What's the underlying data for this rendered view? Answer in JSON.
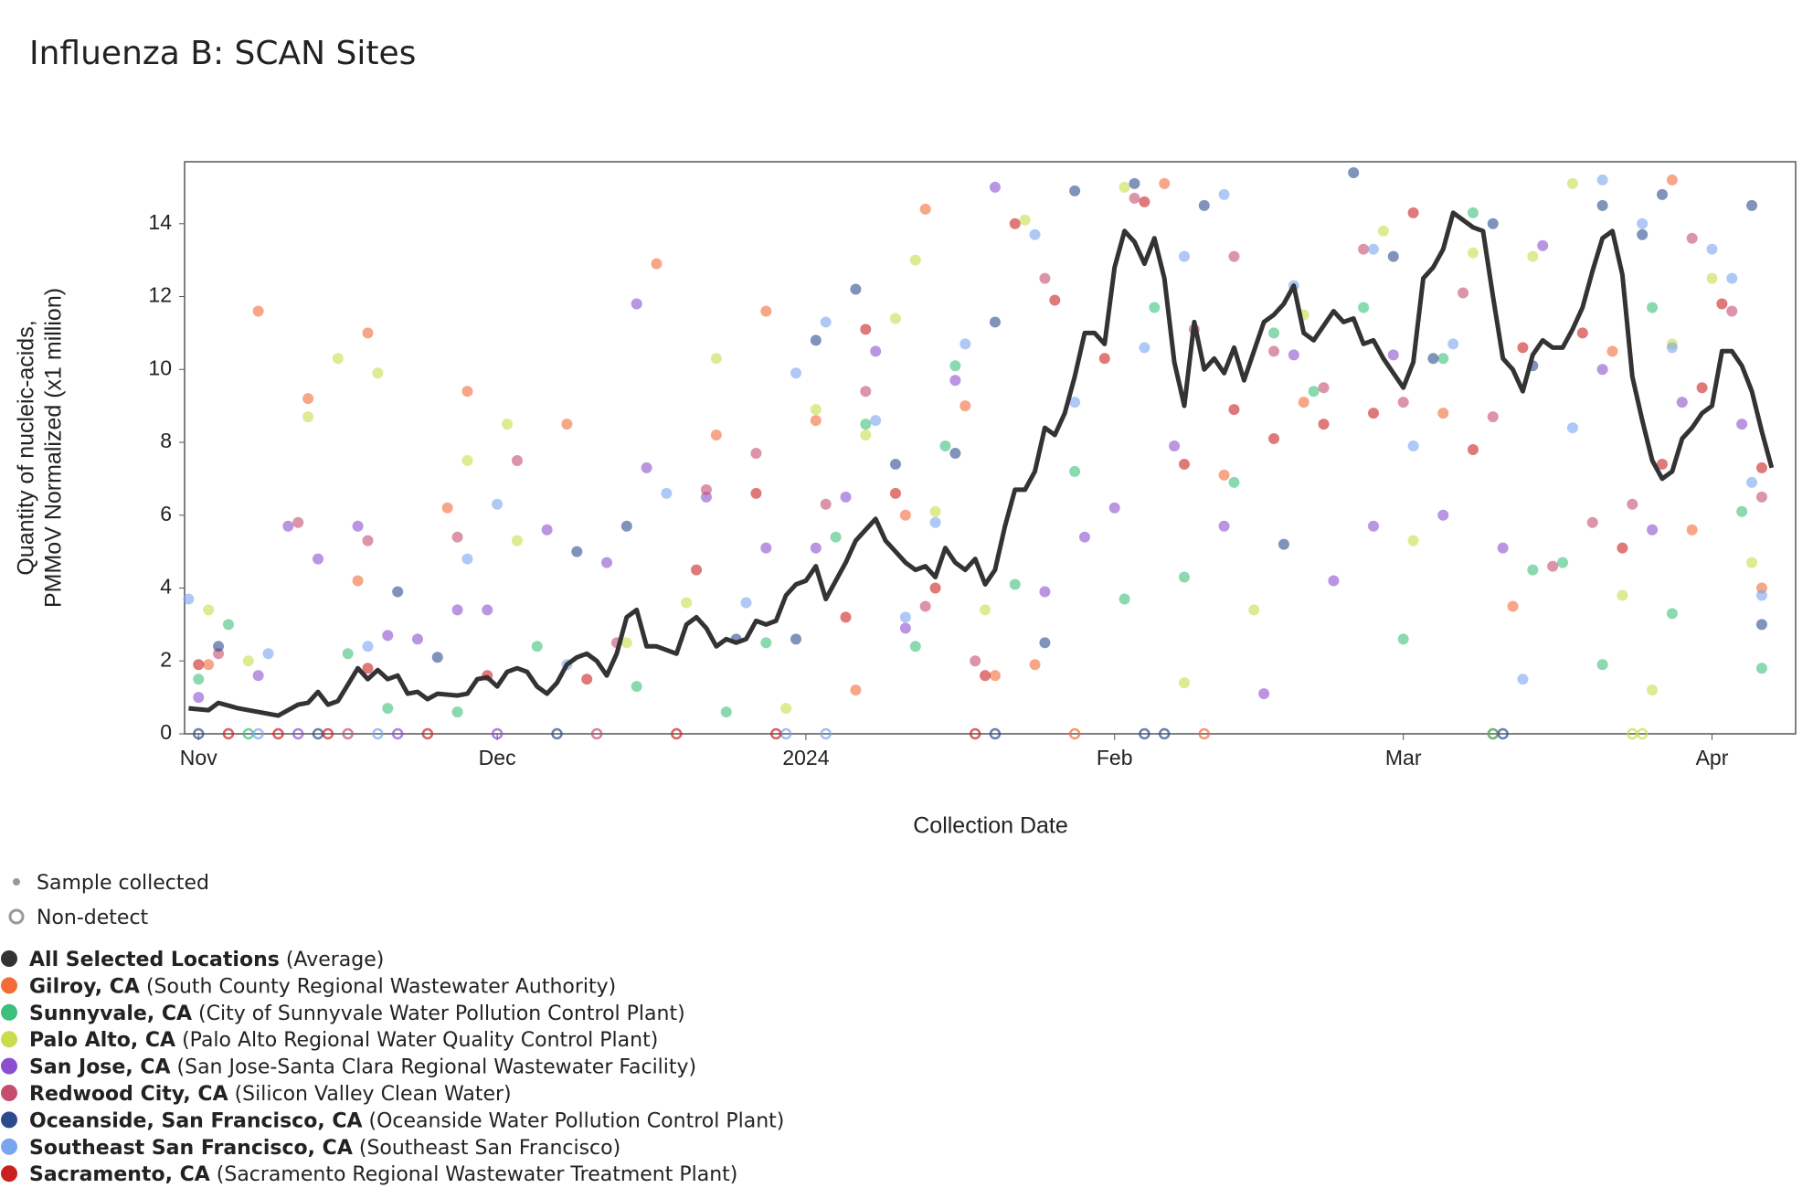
{
  "chart_data": {
    "type": "scatter",
    "title": "Influenza B: SCAN Sites",
    "xlabel": "Collection Date",
    "ylabel": [
      "Quantity of nucleic-acids,",
      "PMMoV Normalized (x1 million)"
    ],
    "xlim": [
      -1.4,
      160.4
    ],
    "xticks": [
      {
        "value": 0,
        "label": "Nov"
      },
      {
        "value": 30,
        "label": "Dec"
      },
      {
        "value": 61,
        "label": "2024"
      },
      {
        "value": 92,
        "label": "Feb"
      },
      {
        "value": 121,
        "label": "Mar"
      },
      {
        "value": 152,
        "label": "Apr"
      }
    ],
    "ylim": [
      0,
      15.7
    ],
    "yticks": [
      0,
      2,
      4,
      6,
      8,
      10,
      12,
      14
    ],
    "grid": false,
    "legend_notes": [
      "Sample collected",
      "Non-detect"
    ],
    "series": [
      {
        "name": "All Selected Locations",
        "detail": "(Average)",
        "color": "#333333",
        "mode": "line",
        "x": [
          -1,
          1,
          2,
          4,
          6,
          8,
          10,
          11,
          12,
          13,
          14,
          16,
          17,
          18,
          19,
          20,
          21,
          22,
          23,
          24,
          26,
          27,
          28,
          29,
          30,
          31,
          32,
          33,
          34,
          35,
          36,
          37,
          38,
          39,
          40,
          41,
          42,
          43,
          44,
          45,
          46,
          47,
          48,
          49,
          50,
          51,
          52,
          53,
          54,
          55,
          56,
          57,
          58,
          59,
          60,
          61,
          62,
          63,
          64,
          65,
          66,
          67,
          68,
          69,
          70,
          71,
          72,
          73,
          74,
          75,
          76,
          77,
          78,
          79,
          80,
          81,
          82,
          83,
          84,
          85,
          86,
          87,
          88,
          89,
          90,
          91,
          92,
          93,
          94,
          95,
          96,
          97,
          98,
          99,
          100,
          101,
          102,
          103,
          104,
          105,
          106,
          107,
          108,
          109,
          110,
          111,
          112,
          113,
          114,
          115,
          116,
          117,
          118,
          119,
          120,
          121,
          122,
          123,
          124,
          125,
          126,
          127,
          128,
          129,
          130,
          131,
          132,
          133,
          134,
          135,
          136,
          137,
          138,
          139,
          140,
          141,
          142,
          143,
          144,
          145,
          146,
          147,
          148,
          149,
          150,
          151,
          152,
          153,
          154,
          155,
          156,
          157,
          158
        ],
        "values": [
          0.7,
          0.65,
          0.85,
          0.7,
          0.6,
          0.5,
          0.8,
          0.85,
          1.15,
          0.8,
          0.9,
          1.8,
          1.5,
          1.75,
          1.5,
          1.6,
          1.1,
          1.15,
          0.95,
          1.1,
          1.05,
          1.1,
          1.5,
          1.55,
          1.3,
          1.7,
          1.8,
          1.7,
          1.3,
          1.1,
          1.4,
          1.9,
          2.1,
          2.2,
          2.0,
          1.6,
          2.2,
          3.2,
          3.4,
          2.4,
          2.4,
          2.3,
          2.2,
          3.0,
          3.2,
          2.9,
          2.4,
          2.6,
          2.5,
          2.6,
          3.1,
          3.0,
          3.1,
          3.8,
          4.1,
          4.2,
          4.6,
          3.7,
          4.2,
          4.7,
          5.3,
          5.6,
          5.9,
          5.3,
          5.0,
          4.7,
          4.5,
          4.6,
          4.3,
          5.1,
          4.7,
          4.5,
          4.8,
          4.1,
          4.5,
          5.7,
          6.7,
          6.7,
          7.2,
          8.4,
          8.2,
          8.8,
          9.8,
          11.0,
          11.0,
          10.7,
          12.8,
          13.8,
          13.5,
          12.9,
          13.6,
          12.5,
          10.2,
          9.0,
          11.3,
          10.0,
          10.3,
          9.9,
          10.6,
          9.7,
          10.5,
          11.3,
          11.5,
          11.8,
          12.3,
          11.0,
          10.8,
          11.2,
          11.6,
          11.3,
          11.4,
          10.7,
          10.8,
          10.3,
          9.9,
          9.5,
          10.2,
          12.5,
          12.8,
          13.3,
          14.3,
          14.1,
          13.9,
          13.8,
          12.0,
          10.3,
          10.0,
          9.4,
          10.4,
          10.8,
          10.6,
          10.6,
          11.1,
          11.7,
          12.7,
          13.6,
          13.8,
          12.6,
          9.8,
          8.6,
          7.5,
          7.0,
          7.2,
          8.1,
          8.4,
          8.8,
          9.0,
          10.5,
          10.5,
          10.1,
          9.4,
          8.3,
          7.3
        ]
      },
      {
        "name": "Gilroy, CA",
        "detail": "(South County Regional Wastewater Authority)",
        "color": "#f26b38",
        "x": [
          1,
          6,
          11,
          16,
          17,
          25,
          27,
          37,
          46,
          52,
          57,
          62,
          66,
          71,
          73,
          77,
          80,
          84,
          97,
          103,
          111,
          125,
          132,
          142,
          148,
          150,
          157,
          88,
          101,
          130
        ],
        "values": [
          1.9,
          11.6,
          9.2,
          4.2,
          11.0,
          6.2,
          9.4,
          8.5,
          12.9,
          8.2,
          11.6,
          8.6,
          1.2,
          6.0,
          14.4,
          9.0,
          1.6,
          1.9,
          15.1,
          7.1,
          9.1,
          8.8,
          3.5,
          10.5,
          15.2,
          5.6,
          4.0,
          0,
          0,
          0
        ]
      },
      {
        "name": "Sunnyvale, CA",
        "detail": "(City of Sunnyvale Water Pollution Control Plant)",
        "color": "#3cbf7a",
        "x": [
          0,
          3,
          15,
          19,
          26,
          34,
          44,
          53,
          57,
          64,
          67,
          72,
          75,
          76,
          82,
          88,
          93,
          96,
          99,
          104,
          108,
          112,
          117,
          121,
          125,
          128,
          134,
          137,
          141,
          146,
          148,
          155,
          157,
          130,
          5
        ],
        "values": [
          1.5,
          3.0,
          2.2,
          0.7,
          0.6,
          2.4,
          1.3,
          0.6,
          2.5,
          5.4,
          8.5,
          2.4,
          7.9,
          10.1,
          4.1,
          7.2,
          3.7,
          11.7,
          4.3,
          6.9,
          11.0,
          9.4,
          11.7,
          2.6,
          10.3,
          14.3,
          4.5,
          4.7,
          1.9,
          11.7,
          3.3,
          6.1,
          1.8,
          0,
          0
        ]
      },
      {
        "name": "Palo Alto, CA",
        "detail": "(Palo Alto Regional Water Quality Control Plant)",
        "color": "#c9dc4a",
        "x": [
          1,
          5,
          11,
          14,
          18,
          27,
          31,
          32,
          43,
          49,
          52,
          59,
          62,
          67,
          70,
          72,
          74,
          79,
          83,
          93,
          99,
          106,
          111,
          119,
          122,
          128,
          134,
          138,
          143,
          146,
          148,
          152,
          156,
          144,
          145
        ],
        "values": [
          3.4,
          2.0,
          8.7,
          10.3,
          9.9,
          7.5,
          8.5,
          5.3,
          2.5,
          3.6,
          10.3,
          0.7,
          8.9,
          8.2,
          11.4,
          13.0,
          6.1,
          3.4,
          14.1,
          15.0,
          1.4,
          3.4,
          11.5,
          13.8,
          5.3,
          13.2,
          13.1,
          15.1,
          3.8,
          1.2,
          10.7,
          12.5,
          4.7,
          0,
          0
        ]
      },
      {
        "name": "San Jose, CA",
        "detail": "(San Jose-Santa Clara Regional Wastewater Facility)",
        "color": "#8a4fcf",
        "x": [
          0,
          6,
          9,
          12,
          16,
          19,
          22,
          26,
          29,
          35,
          41,
          44,
          45,
          51,
          57,
          62,
          65,
          68,
          71,
          76,
          80,
          85,
          89,
          92,
          98,
          103,
          107,
          110,
          114,
          118,
          120,
          125,
          131,
          135,
          141,
          146,
          149,
          155,
          10,
          20,
          30
        ],
        "values": [
          1.0,
          1.6,
          5.7,
          4.8,
          5.7,
          2.7,
          2.6,
          3.4,
          3.4,
          5.6,
          4.7,
          11.8,
          7.3,
          6.5,
          5.1,
          5.1,
          6.5,
          10.5,
          2.9,
          9.7,
          15.0,
          3.9,
          5.4,
          6.2,
          7.9,
          5.7,
          1.1,
          10.4,
          4.2,
          5.7,
          10.4,
          6.0,
          5.1,
          13.4,
          10.0,
          5.6,
          9.1,
          8.5,
          0,
          0,
          0
        ]
      },
      {
        "name": "Redwood City, CA",
        "detail": "(Silicon Valley Clean Water)",
        "color": "#c44e6e",
        "x": [
          2,
          10,
          17,
          26,
          32,
          42,
          51,
          56,
          63,
          67,
          73,
          78,
          85,
          94,
          100,
          104,
          108,
          113,
          117,
          121,
          127,
          130,
          136,
          140,
          144,
          150,
          154,
          157,
          15,
          40
        ],
        "values": [
          2.2,
          5.8,
          5.3,
          5.4,
          7.5,
          2.5,
          6.7,
          7.7,
          6.3,
          9.4,
          3.5,
          2.0,
          12.5,
          14.7,
          11.1,
          13.1,
          10.5,
          9.5,
          13.3,
          9.1,
          12.1,
          8.7,
          4.6,
          5.8,
          6.3,
          13.6,
          11.6,
          6.5,
          0,
          0
        ]
      },
      {
        "name": "Oceanside, San Francisco, CA",
        "detail": "(Oceanside Water Pollution Control Plant)",
        "color": "#2a4b8d",
        "x": [
          2,
          20,
          24,
          38,
          43,
          54,
          60,
          62,
          66,
          70,
          76,
          80,
          85,
          88,
          94,
          101,
          109,
          116,
          120,
          124,
          130,
          134,
          141,
          145,
          147,
          156,
          157,
          0,
          12,
          36,
          80,
          95,
          97,
          131
        ],
        "values": [
          2.4,
          3.9,
          2.1,
          5.0,
          5.7,
          2.6,
          2.6,
          10.8,
          12.2,
          7.4,
          7.7,
          11.3,
          2.5,
          14.9,
          15.1,
          14.5,
          5.2,
          15.4,
          13.1,
          10.3,
          14.0,
          10.1,
          14.5,
          13.7,
          14.8,
          14.5,
          3.0,
          0,
          0,
          0,
          0,
          0,
          0,
          0
        ]
      },
      {
        "name": "Southeast San Francisco, CA",
        "detail": "(Southeast San Francisco)",
        "color": "#7ba4f0",
        "x": [
          -1,
          7,
          17,
          27,
          30,
          37,
          47,
          55,
          60,
          63,
          68,
          71,
          74,
          77,
          84,
          88,
          95,
          99,
          103,
          110,
          118,
          122,
          126,
          133,
          138,
          141,
          145,
          148,
          152,
          154,
          156,
          157,
          6,
          18,
          59,
          63
        ],
        "values": [
          3.7,
          2.2,
          2.4,
          4.8,
          6.3,
          1.9,
          6.6,
          3.6,
          9.9,
          11.3,
          8.6,
          3.2,
          5.8,
          10.7,
          13.7,
          9.1,
          10.6,
          13.1,
          14.8,
          12.3,
          13.3,
          7.9,
          10.7,
          1.5,
          8.4,
          15.2,
          14.0,
          10.6,
          13.3,
          12.5,
          6.9,
          3.8,
          0,
          0,
          0,
          0
        ]
      },
      {
        "name": "Sacramento, CA",
        "detail": "(Sacramento Regional Wastewater Treatment Plant)",
        "color": "#cc1f1f",
        "x": [
          0,
          8,
          17,
          29,
          39,
          50,
          56,
          65,
          67,
          70,
          74,
          79,
          82,
          86,
          91,
          95,
          99,
          104,
          108,
          113,
          118,
          122,
          128,
          133,
          139,
          143,
          147,
          151,
          153,
          157,
          3,
          13,
          23,
          48,
          58,
          78
        ],
        "values": [
          1.9,
          0,
          1.8,
          1.6,
          1.5,
          4.5,
          6.6,
          3.2,
          11.1,
          6.6,
          4.0,
          1.6,
          14.0,
          11.9,
          10.3,
          14.6,
          7.4,
          8.9,
          8.1,
          8.5,
          8.8,
          14.3,
          7.8,
          10.6,
          11.0,
          5.1,
          7.4,
          9.5,
          11.8,
          7.3,
          0,
          0,
          0,
          0,
          0,
          0
        ]
      }
    ]
  }
}
